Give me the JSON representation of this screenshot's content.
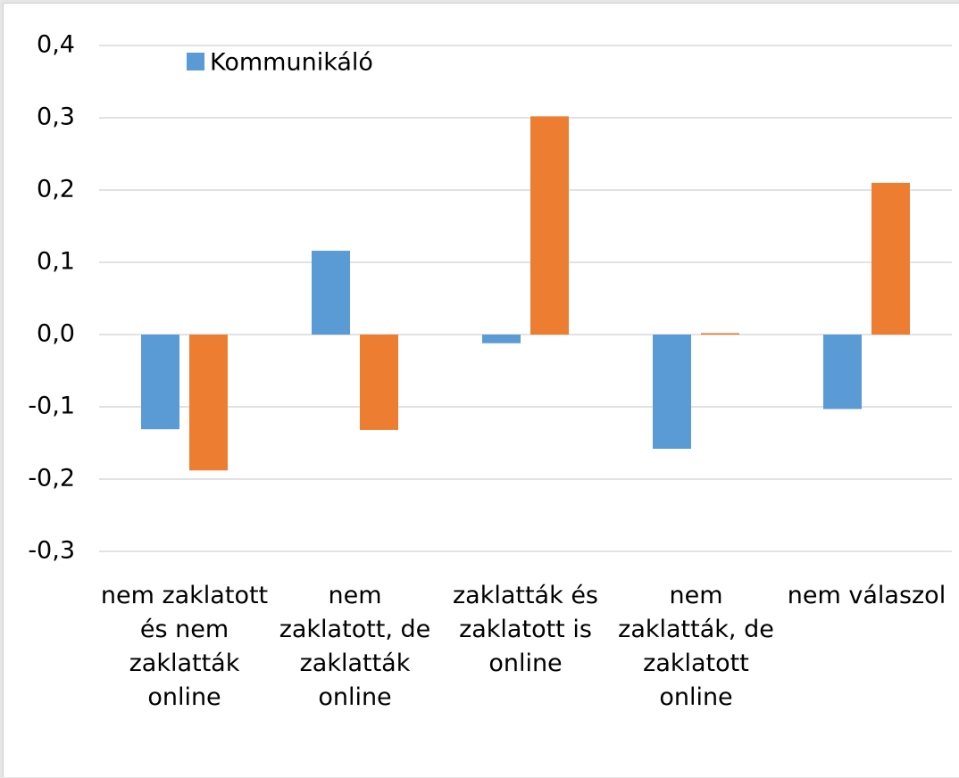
{
  "chart_data": {
    "type": "bar",
    "categories": [
      "nem zaklatott és nem zaklatták online",
      "nem zaklatott, de zaklatták online",
      "zaklatták és zaklatott is online",
      "nem zaklatták, de zaklatott online",
      "nem válaszol"
    ],
    "series": [
      {
        "name": "Kommunikáló",
        "color": "#5b9bd5",
        "values": [
          -0.131,
          0.116,
          -0.012,
          -0.158,
          -0.103
        ]
      },
      {
        "color": "#ed7d31",
        "values": [
          -0.188,
          -0.132,
          0.302,
          0.002,
          0.21
        ]
      }
    ],
    "ylim": [
      -0.3,
      0.4
    ],
    "yticks": [
      {
        "value": -0.3,
        "label": "-0,3"
      },
      {
        "value": -0.2,
        "label": "-0,2"
      },
      {
        "value": -0.1,
        "label": "-0,1"
      },
      {
        "value": 0,
        "label": "0,0"
      },
      {
        "value": 0.1,
        "label": "0,1"
      },
      {
        "value": 0.2,
        "label": "0,2"
      },
      {
        "value": 0.3,
        "label": "0,3"
      },
      {
        "value": 0.4,
        "label": "0,4"
      }
    ],
    "grid": true,
    "legend": "top-left"
  }
}
